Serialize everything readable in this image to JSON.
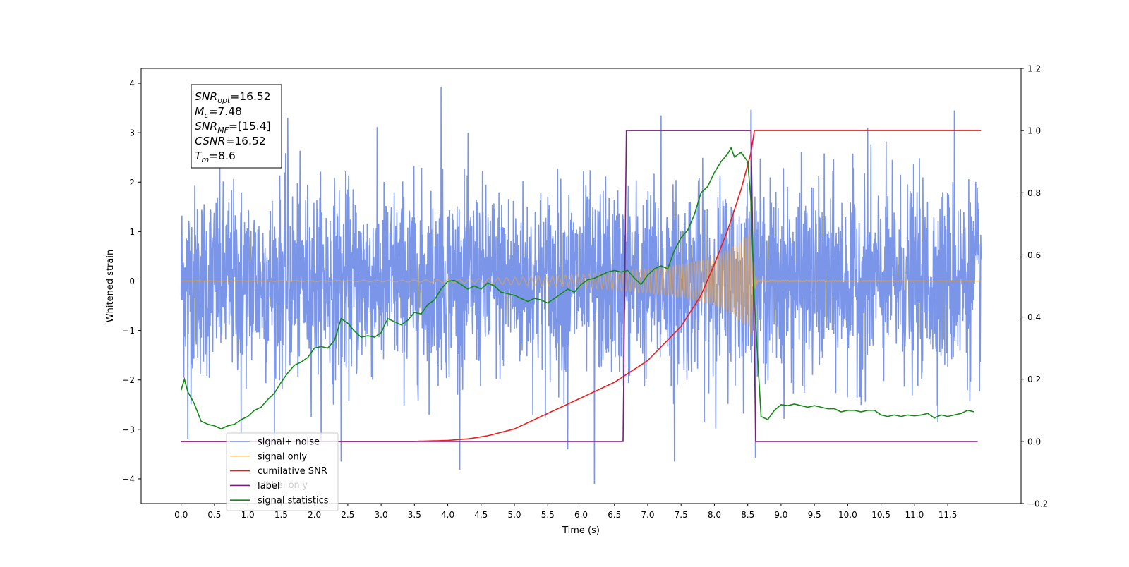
{
  "chart_data": {
    "type": "line",
    "xlabel": "Time (s)",
    "ylabel": "Whitened strain",
    "xlim": [
      -0.6,
      12.6
    ],
    "ylim": [
      -4.5,
      4.3
    ],
    "y2lim": [
      -0.2,
      1.2
    ],
    "x_ticks": [
      "0.0",
      "0.5",
      "1.0",
      "1.5",
      "2.0",
      "2.5",
      "3.0",
      "3.5",
      "4.0",
      "4.5",
      "5.0",
      "5.5",
      "6.0",
      "6.5",
      "7.0",
      "7.5",
      "8.0",
      "8.5",
      "9.0",
      "9.5",
      "10.0",
      "10.5",
      "11.0",
      "11.5"
    ],
    "y_ticks": [
      "4",
      "3",
      "2",
      "1",
      "0",
      "−1",
      "−2",
      "−3",
      "−4"
    ],
    "y2_ticks": [
      "1.2",
      "1.0",
      "0.8",
      "0.6",
      "0.4",
      "0.2",
      "0.0",
      "−0.2"
    ],
    "grid": false,
    "legend_position": "lower-left",
    "annotation": [
      {
        "symbol": "SNR",
        "sub": "opt",
        "value": "=16.52"
      },
      {
        "symbol": "M",
        "sub": "c",
        "value": "=7.48"
      },
      {
        "symbol": "SNR",
        "sub": "MF",
        "value": "=[15.4]"
      },
      {
        "symbol": "CSNR",
        "sub": "",
        "value": "=16.52"
      },
      {
        "symbol": "T",
        "sub": "m",
        "value": "=8.6"
      }
    ],
    "series": [
      {
        "name": "signal+ noise",
        "axis": "left",
        "color": "#7b96e8",
        "time_span": [
          0.0,
          12.0
        ],
        "noise_std": 0.95,
        "peak_spikes": [
          {
            "x": 0.1,
            "y": -3.2
          },
          {
            "x": 0.9,
            "y": -3.1
          },
          {
            "x": 1.6,
            "y": 3.3
          },
          {
            "x": 2.4,
            "y": -3.65
          },
          {
            "x": 3.9,
            "y": 3.93
          },
          {
            "x": 5.8,
            "y": -3.4
          },
          {
            "x": 6.2,
            "y": -4.1
          },
          {
            "x": 7.2,
            "y": 3.35
          },
          {
            "x": 7.4,
            "y": -3.65
          },
          {
            "x": 8.55,
            "y": 3.45
          },
          {
            "x": 10.3,
            "y": 3.1
          },
          {
            "x": 11.6,
            "y": 3.45
          }
        ]
      },
      {
        "name": "signal only",
        "axis": "left",
        "color": "#ffa726",
        "envelope": [
          [
            0.0,
            0.0
          ],
          [
            3.5,
            0.02
          ],
          [
            4.5,
            0.05
          ],
          [
            5.5,
            0.1
          ],
          [
            6.5,
            0.18
          ],
          [
            7.0,
            0.25
          ],
          [
            7.5,
            0.34
          ],
          [
            8.0,
            0.5
          ],
          [
            8.25,
            0.68
          ],
          [
            8.45,
            0.9
          ],
          [
            8.56,
            1.1
          ],
          [
            8.6,
            0.2
          ],
          [
            8.65,
            0.02
          ],
          [
            12.0,
            0.0
          ]
        ]
      },
      {
        "name": "cumilative SNR",
        "axis": "right",
        "color": "#ee1c1c",
        "points": [
          [
            0.0,
            0.0
          ],
          [
            3.5,
            0.0
          ],
          [
            4.0,
            0.003
          ],
          [
            4.3,
            0.008
          ],
          [
            4.6,
            0.018
          ],
          [
            5.0,
            0.04
          ],
          [
            5.5,
            0.09
          ],
          [
            6.0,
            0.14
          ],
          [
            6.5,
            0.19
          ],
          [
            7.0,
            0.26
          ],
          [
            7.5,
            0.37
          ],
          [
            7.8,
            0.47
          ],
          [
            8.0,
            0.57
          ],
          [
            8.2,
            0.68
          ],
          [
            8.4,
            0.81
          ],
          [
            8.55,
            0.93
          ],
          [
            8.6,
            1.0
          ],
          [
            12.0,
            1.0
          ]
        ]
      },
      {
        "name": "label",
        "axis": "right",
        "color": "#7d1b7e",
        "points": [
          [
            0.0,
            0.0
          ],
          [
            6.63,
            0.0
          ],
          [
            6.68,
            1.0
          ],
          [
            8.55,
            1.0
          ],
          [
            8.62,
            0.0
          ],
          [
            11.95,
            0.0
          ]
        ]
      },
      {
        "name": "signal statistics",
        "axis": "right",
        "color": "#138a13",
        "points": [
          [
            0.0,
            0.165
          ],
          [
            0.05,
            0.2
          ],
          [
            0.1,
            0.16
          ],
          [
            0.2,
            0.12
          ],
          [
            0.3,
            0.065
          ],
          [
            0.4,
            0.055
          ],
          [
            0.5,
            0.05
          ],
          [
            0.6,
            0.04
          ],
          [
            0.7,
            0.05
          ],
          [
            0.8,
            0.055
          ],
          [
            0.9,
            0.07
          ],
          [
            1.0,
            0.08
          ],
          [
            1.1,
            0.1
          ],
          [
            1.2,
            0.11
          ],
          [
            1.3,
            0.135
          ],
          [
            1.4,
            0.155
          ],
          [
            1.5,
            0.19
          ],
          [
            1.6,
            0.22
          ],
          [
            1.7,
            0.245
          ],
          [
            1.8,
            0.255
          ],
          [
            1.9,
            0.27
          ],
          [
            2.0,
            0.3
          ],
          [
            2.1,
            0.305
          ],
          [
            2.2,
            0.3
          ],
          [
            2.3,
            0.325
          ],
          [
            2.4,
            0.395
          ],
          [
            2.5,
            0.38
          ],
          [
            2.6,
            0.355
          ],
          [
            2.7,
            0.335
          ],
          [
            2.8,
            0.34
          ],
          [
            2.9,
            0.335
          ],
          [
            3.0,
            0.35
          ],
          [
            3.1,
            0.395
          ],
          [
            3.2,
            0.385
          ],
          [
            3.3,
            0.375
          ],
          [
            3.4,
            0.39
          ],
          [
            3.5,
            0.415
          ],
          [
            3.6,
            0.41
          ],
          [
            3.7,
            0.44
          ],
          [
            3.8,
            0.455
          ],
          [
            3.9,
            0.49
          ],
          [
            4.0,
            0.515
          ],
          [
            4.1,
            0.518
          ],
          [
            4.2,
            0.505
          ],
          [
            4.3,
            0.49
          ],
          [
            4.4,
            0.5
          ],
          [
            4.5,
            0.49
          ],
          [
            4.6,
            0.51
          ],
          [
            4.7,
            0.5
          ],
          [
            4.8,
            0.48
          ],
          [
            4.9,
            0.475
          ],
          [
            5.0,
            0.47
          ],
          [
            5.1,
            0.46
          ],
          [
            5.2,
            0.45
          ],
          [
            5.3,
            0.46
          ],
          [
            5.4,
            0.455
          ],
          [
            5.5,
            0.445
          ],
          [
            5.6,
            0.46
          ],
          [
            5.7,
            0.475
          ],
          [
            5.8,
            0.49
          ],
          [
            5.9,
            0.48
          ],
          [
            6.0,
            0.505
          ],
          [
            6.1,
            0.52
          ],
          [
            6.2,
            0.525
          ],
          [
            6.3,
            0.535
          ],
          [
            6.4,
            0.545
          ],
          [
            6.5,
            0.55
          ],
          [
            6.6,
            0.545
          ],
          [
            6.7,
            0.55
          ],
          [
            6.8,
            0.525
          ],
          [
            6.9,
            0.505
          ],
          [
            7.0,
            0.535
          ],
          [
            7.1,
            0.555
          ],
          [
            7.2,
            0.565
          ],
          [
            7.3,
            0.555
          ],
          [
            7.4,
            0.615
          ],
          [
            7.5,
            0.655
          ],
          [
            7.6,
            0.68
          ],
          [
            7.7,
            0.73
          ],
          [
            7.8,
            0.8
          ],
          [
            7.9,
            0.82
          ],
          [
            8.0,
            0.865
          ],
          [
            8.1,
            0.9
          ],
          [
            8.2,
            0.925
          ],
          [
            8.25,
            0.945
          ],
          [
            8.3,
            0.915
          ],
          [
            8.4,
            0.93
          ],
          [
            8.5,
            0.9
          ],
          [
            8.55,
            0.77
          ],
          [
            8.6,
            0.45
          ],
          [
            8.7,
            0.08
          ],
          [
            8.8,
            0.07
          ],
          [
            8.9,
            0.1
          ],
          [
            9.0,
            0.118
          ],
          [
            9.1,
            0.115
          ],
          [
            9.2,
            0.12
          ],
          [
            9.3,
            0.115
          ],
          [
            9.4,
            0.11
          ],
          [
            9.5,
            0.115
          ],
          [
            9.6,
            0.11
          ],
          [
            9.7,
            0.105
          ],
          [
            9.8,
            0.105
          ],
          [
            9.9,
            0.095
          ],
          [
            10.0,
            0.1
          ],
          [
            10.1,
            0.1
          ],
          [
            10.2,
            0.095
          ],
          [
            10.3,
            0.1
          ],
          [
            10.4,
            0.1
          ],
          [
            10.5,
            0.085
          ],
          [
            10.6,
            0.08
          ],
          [
            10.7,
            0.085
          ],
          [
            10.8,
            0.08
          ],
          [
            10.9,
            0.085
          ],
          [
            11.0,
            0.082
          ],
          [
            11.1,
            0.085
          ],
          [
            11.2,
            0.09
          ],
          [
            11.3,
            0.075
          ],
          [
            11.4,
            0.085
          ],
          [
            11.5,
            0.08
          ],
          [
            11.6,
            0.085
          ],
          [
            11.7,
            0.09
          ],
          [
            11.8,
            0.1
          ],
          [
            11.9,
            0.095
          ]
        ]
      }
    ],
    "legend": [
      {
        "label": "signal+ noise",
        "color": "#7b96e8"
      },
      {
        "label": "signal only",
        "color": "#ffc97a"
      },
      {
        "label": "cumilative SNR",
        "color": "#ee1c1c"
      },
      {
        "label": "label",
        "color": "#7d1b7e"
      },
      {
        "label": "signal statistics",
        "color": "#138a13"
      }
    ],
    "legend_occluded_text": "label only"
  }
}
